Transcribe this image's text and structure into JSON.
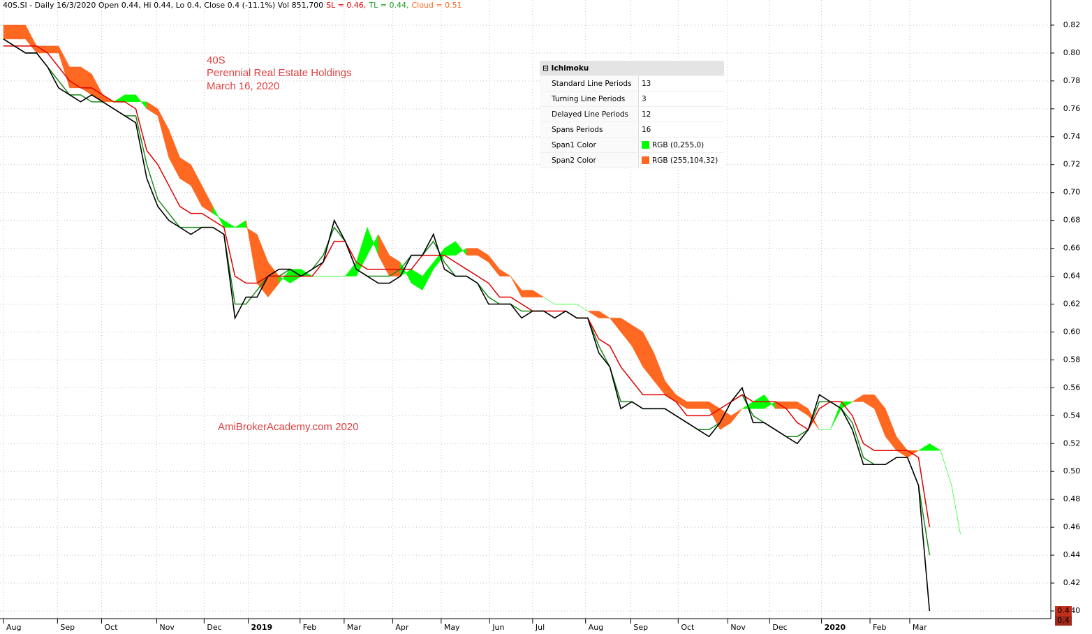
{
  "header": {
    "symbol_info": "40S.SI - Daily 16/3/2020 Open 0.44, Hi 0.44, Lo 0.4, Close 0.4 (-11.1%) Vol 851,700",
    "sl": "SL = 0.46,",
    "tl": "TL = 0.44,",
    "cloud": "Cloud = 0.51"
  },
  "chart_data": {
    "type": "line",
    "annotations": [
      "40S",
      "Perennial Real Estate Holdings",
      "March 16, 2020",
      "AmiBrokerAcademy.com  2020"
    ],
    "x": [
      0,
      1,
      2,
      3,
      4,
      5,
      6,
      7,
      8,
      9,
      10,
      11,
      12,
      13,
      14,
      15,
      16,
      17,
      18,
      19,
      20,
      21,
      22,
      23,
      24,
      25,
      26,
      27,
      28,
      29,
      30,
      31,
      32,
      33,
      34,
      35,
      36,
      37,
      38,
      39,
      40,
      41,
      42,
      43,
      44,
      45,
      46,
      47,
      48,
      49,
      50,
      51,
      52,
      53,
      54,
      55,
      56,
      57,
      58,
      59,
      60,
      61,
      62,
      63,
      64,
      65,
      66,
      67,
      68,
      69,
      70,
      71,
      72,
      73,
      74,
      75,
      76,
      77,
      78,
      79,
      80,
      81,
      82,
      83,
      84,
      85,
      86,
      86.8
    ],
    "series": [
      {
        "color": "#000000",
        "values": [
          0.81,
          0.805,
          0.8,
          0.8,
          0.79,
          0.775,
          0.77,
          0.765,
          0.77,
          0.765,
          0.76,
          0.755,
          0.75,
          0.71,
          0.69,
          0.68,
          0.675,
          0.67,
          0.675,
          0.675,
          0.67,
          0.61,
          0.625,
          0.625,
          0.64,
          0.645,
          0.645,
          0.64,
          0.645,
          0.65,
          0.68,
          0.665,
          0.645,
          0.64,
          0.635,
          0.635,
          0.64,
          0.655,
          0.655,
          0.67,
          0.645,
          0.64,
          0.64,
          0.635,
          0.62,
          0.62,
          0.62,
          0.61,
          0.615,
          0.615,
          0.61,
          0.615,
          0.61,
          0.61,
          0.585,
          0.575,
          0.545,
          0.55,
          0.545,
          0.545,
          0.545,
          0.54,
          0.535,
          0.53,
          0.525,
          0.535,
          0.55,
          0.56,
          0.535,
          0.535,
          0.53,
          0.525,
          0.52,
          0.53,
          0.555,
          0.55,
          0.545,
          0.53,
          0.505,
          0.505,
          0.505,
          0.51,
          0.51,
          0.49,
          0.4,
          null,
          null,
          null
        ]
      },
      {
        "color": "#e00000",
        "values": [
          0.805,
          0.805,
          0.805,
          0.805,
          0.8,
          0.79,
          0.78,
          0.775,
          0.775,
          0.77,
          0.765,
          0.765,
          0.76,
          0.73,
          0.72,
          0.705,
          0.69,
          0.685,
          0.685,
          0.68,
          0.675,
          0.64,
          0.635,
          0.635,
          0.64,
          0.64,
          0.64,
          0.64,
          0.64,
          0.65,
          0.665,
          0.665,
          0.65,
          0.645,
          0.645,
          0.645,
          0.645,
          0.645,
          0.655,
          0.655,
          0.655,
          0.65,
          0.645,
          0.64,
          0.635,
          0.625,
          0.625,
          0.62,
          0.615,
          0.615,
          0.615,
          0.615,
          0.61,
          0.61,
          0.595,
          0.59,
          0.575,
          0.565,
          0.555,
          0.555,
          0.555,
          0.55,
          0.54,
          0.54,
          0.54,
          0.545,
          0.55,
          0.555,
          0.55,
          0.55,
          0.55,
          0.545,
          0.535,
          0.53,
          0.545,
          0.55,
          0.55,
          0.54,
          0.52,
          0.515,
          0.515,
          0.515,
          0.515,
          0.51,
          0.46,
          null,
          null,
          null
        ]
      },
      {
        "color": "#1a8a1a",
        "values": [
          0.81,
          0.805,
          0.8,
          0.8,
          0.79,
          0.78,
          0.77,
          0.77,
          0.765,
          0.765,
          0.76,
          0.755,
          0.755,
          0.72,
          0.695,
          0.685,
          0.675,
          0.675,
          0.675,
          0.675,
          0.67,
          0.62,
          0.62,
          0.63,
          0.64,
          0.64,
          0.645,
          0.64,
          0.645,
          0.655,
          0.675,
          0.665,
          0.645,
          0.64,
          0.64,
          0.64,
          0.645,
          0.655,
          0.655,
          0.665,
          0.65,
          0.64,
          0.64,
          0.635,
          0.625,
          0.62,
          0.62,
          0.615,
          0.615,
          0.615,
          0.61,
          0.615,
          0.61,
          0.61,
          0.59,
          0.575,
          0.55,
          0.55,
          0.545,
          0.545,
          0.545,
          0.54,
          0.535,
          0.53,
          0.53,
          0.535,
          0.55,
          0.555,
          0.54,
          0.535,
          0.53,
          0.525,
          0.525,
          0.53,
          0.55,
          0.55,
          0.545,
          0.535,
          0.51,
          0.505,
          0.505,
          0.51,
          0.51,
          0.49,
          0.44,
          null,
          null,
          null
        ]
      }
    ],
    "cloud": {
      "colors": [
        "#00ff00",
        "#ff6820"
      ],
      "span1": [
        0.81,
        0.81,
        0.81,
        0.8,
        0.8,
        0.8,
        0.775,
        0.775,
        0.77,
        0.765,
        0.765,
        0.77,
        0.77,
        0.76,
        0.755,
        0.725,
        0.71,
        0.705,
        0.69,
        0.685,
        0.68,
        0.675,
        0.68,
        0.635,
        0.625,
        0.635,
        0.645,
        0.645,
        0.64,
        0.64,
        0.64,
        0.64,
        0.65,
        0.675,
        0.655,
        0.64,
        0.64,
        0.645,
        0.64,
        0.65,
        0.66,
        0.665,
        0.655,
        0.655,
        0.65,
        0.64,
        0.64,
        0.625,
        0.625,
        0.625,
        0.62,
        0.62,
        0.62,
        0.615,
        0.61,
        0.61,
        0.6,
        0.59,
        0.575,
        0.565,
        0.555,
        0.55,
        0.545,
        0.545,
        0.545,
        0.53,
        0.535,
        0.545,
        0.55,
        0.555,
        0.545,
        0.545,
        0.545,
        0.54,
        0.53,
        0.53,
        0.55,
        0.55,
        0.55,
        0.545,
        0.525,
        0.515,
        0.51,
        0.515,
        0.52,
        0.515,
        0.49,
        0.455
      ],
      "span2": [
        0.82,
        0.82,
        0.82,
        0.805,
        0.805,
        0.805,
        0.79,
        0.79,
        0.785,
        0.77,
        0.765,
        0.765,
        0.765,
        0.765,
        0.76,
        0.745,
        0.725,
        0.72,
        0.705,
        0.69,
        0.675,
        0.675,
        0.675,
        0.67,
        0.65,
        0.64,
        0.635,
        0.64,
        0.64,
        0.64,
        0.64,
        0.64,
        0.64,
        0.655,
        0.67,
        0.655,
        0.65,
        0.635,
        0.63,
        0.645,
        0.655,
        0.655,
        0.66,
        0.66,
        0.655,
        0.645,
        0.64,
        0.63,
        0.63,
        0.625,
        0.62,
        0.62,
        0.62,
        0.615,
        0.615,
        0.61,
        0.61,
        0.605,
        0.6,
        0.585,
        0.565,
        0.555,
        0.55,
        0.55,
        0.55,
        0.545,
        0.54,
        0.545,
        0.545,
        0.545,
        0.55,
        0.55,
        0.55,
        0.545,
        0.53,
        0.53,
        0.545,
        0.55,
        0.555,
        0.555,
        0.545,
        0.525,
        0.515,
        0.515,
        0.515,
        0.515,
        0.49,
        0.455
      ]
    },
    "xlim": [
      0,
      95
    ],
    "ylim": [
      0.395,
      0.838
    ],
    "yticks": [
      {
        "value": 0.4,
        "label": "0.40"
      },
      0.42,
      0.44,
      0.46,
      0.48,
      {
        "value": 0.5,
        "label": "0.50"
      },
      0.52,
      0.54,
      0.56,
      0.58,
      {
        "value": 0.6,
        "label": "0.60"
      },
      0.62,
      0.64,
      0.66,
      0.68,
      {
        "value": 0.7,
        "label": "0.70"
      },
      0.72,
      0.74,
      0.76,
      0.78,
      {
        "value": 0.8,
        "label": "0.80"
      },
      0.82
    ],
    "xticks": [
      {
        "value": 0,
        "label": "Aug"
      },
      {
        "value": 4.9,
        "label": "Sep"
      },
      {
        "value": 8.9,
        "label": "Oct"
      },
      {
        "value": 13.9,
        "label": "Nov"
      },
      {
        "value": 18.2,
        "label": "Dec"
      },
      {
        "value": 22.2,
        "label": "2019"
      },
      {
        "value": 26.9,
        "label": "Feb"
      },
      {
        "value": 30.9,
        "label": "Mar"
      },
      {
        "value": 35.3,
        "label": "Apr"
      },
      {
        "value": 39.7,
        "label": "May"
      },
      {
        "value": 44.1,
        "label": "Jun"
      },
      {
        "value": 48.0,
        "label": "Jul"
      },
      {
        "value": 52.8,
        "label": "Aug"
      },
      {
        "value": 56.9,
        "label": "Sep"
      },
      {
        "value": 61.2,
        "label": "Oct"
      },
      {
        "value": 65.7,
        "label": "Nov"
      },
      {
        "value": 69.5,
        "label": "Dec"
      },
      {
        "value": 74.2,
        "label": "2020"
      },
      {
        "value": 78.6,
        "label": "Feb"
      },
      {
        "value": 82.2,
        "label": "Mar"
      }
    ],
    "grid": true,
    "last_values": [
      0.4,
      0.4
    ],
    "last_value_colors": [
      "#c0301c",
      "#a0281a"
    ]
  },
  "params_panel": {
    "title": "Ichimoku",
    "rows": [
      {
        "name": "Standard Line Periods",
        "value": "13"
      },
      {
        "name": "Turning Line Periods",
        "value": "3"
      },
      {
        "name": "Delayed Line Periods",
        "value": "12"
      },
      {
        "name": "Spans Periods",
        "value": "16"
      },
      {
        "name": "Span1 Color",
        "value": "RGB (0,255,0)",
        "swatch": "#00ff00"
      },
      {
        "name": "Span2 Color",
        "value": "RGB (255,104,32)",
        "swatch": "#ff6820"
      }
    ]
  }
}
